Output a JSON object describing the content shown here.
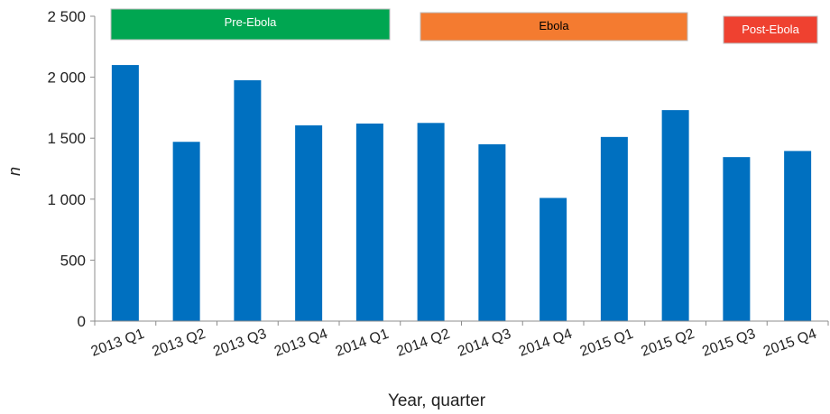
{
  "chart_data": {
    "type": "bar",
    "title": "",
    "xlabel": "Year, quarter",
    "ylabel": "n",
    "ylim": [
      0,
      2500
    ],
    "yticks": [
      0,
      500,
      1000,
      1500,
      2000,
      2500
    ],
    "ytick_labels": [
      "0",
      "500",
      "1 000",
      "1 500",
      "2 000",
      "2 500"
    ],
    "grid": false,
    "legend": "none",
    "categories": [
      "2013 Q1",
      "2013 Q2",
      "2013 Q3",
      "2013 Q4",
      "2014 Q1",
      "2014 Q2",
      "2014 Q3",
      "2014 Q4",
      "2015 Q1",
      "2015 Q2",
      "2015 Q3",
      "2015 Q4"
    ],
    "values": [
      2100,
      1470,
      1975,
      1605,
      1620,
      1625,
      1450,
      1010,
      1510,
      1730,
      1345,
      1395
    ],
    "bar_color": "#0070c0",
    "periods": [
      {
        "label": "Pre-Ebola",
        "color": "#00a651",
        "text_color": "#ffffff",
        "start_index": 0,
        "end_index": 4
      },
      {
        "label": "Ebola",
        "color": "#f47b30",
        "text_color": "#000000",
        "start_index": 5,
        "end_index": 9
      },
      {
        "label": "Post-Ebola",
        "color": "#ef4130",
        "text_color": "#ffffff",
        "start_index": 10,
        "end_index": 11
      }
    ]
  }
}
